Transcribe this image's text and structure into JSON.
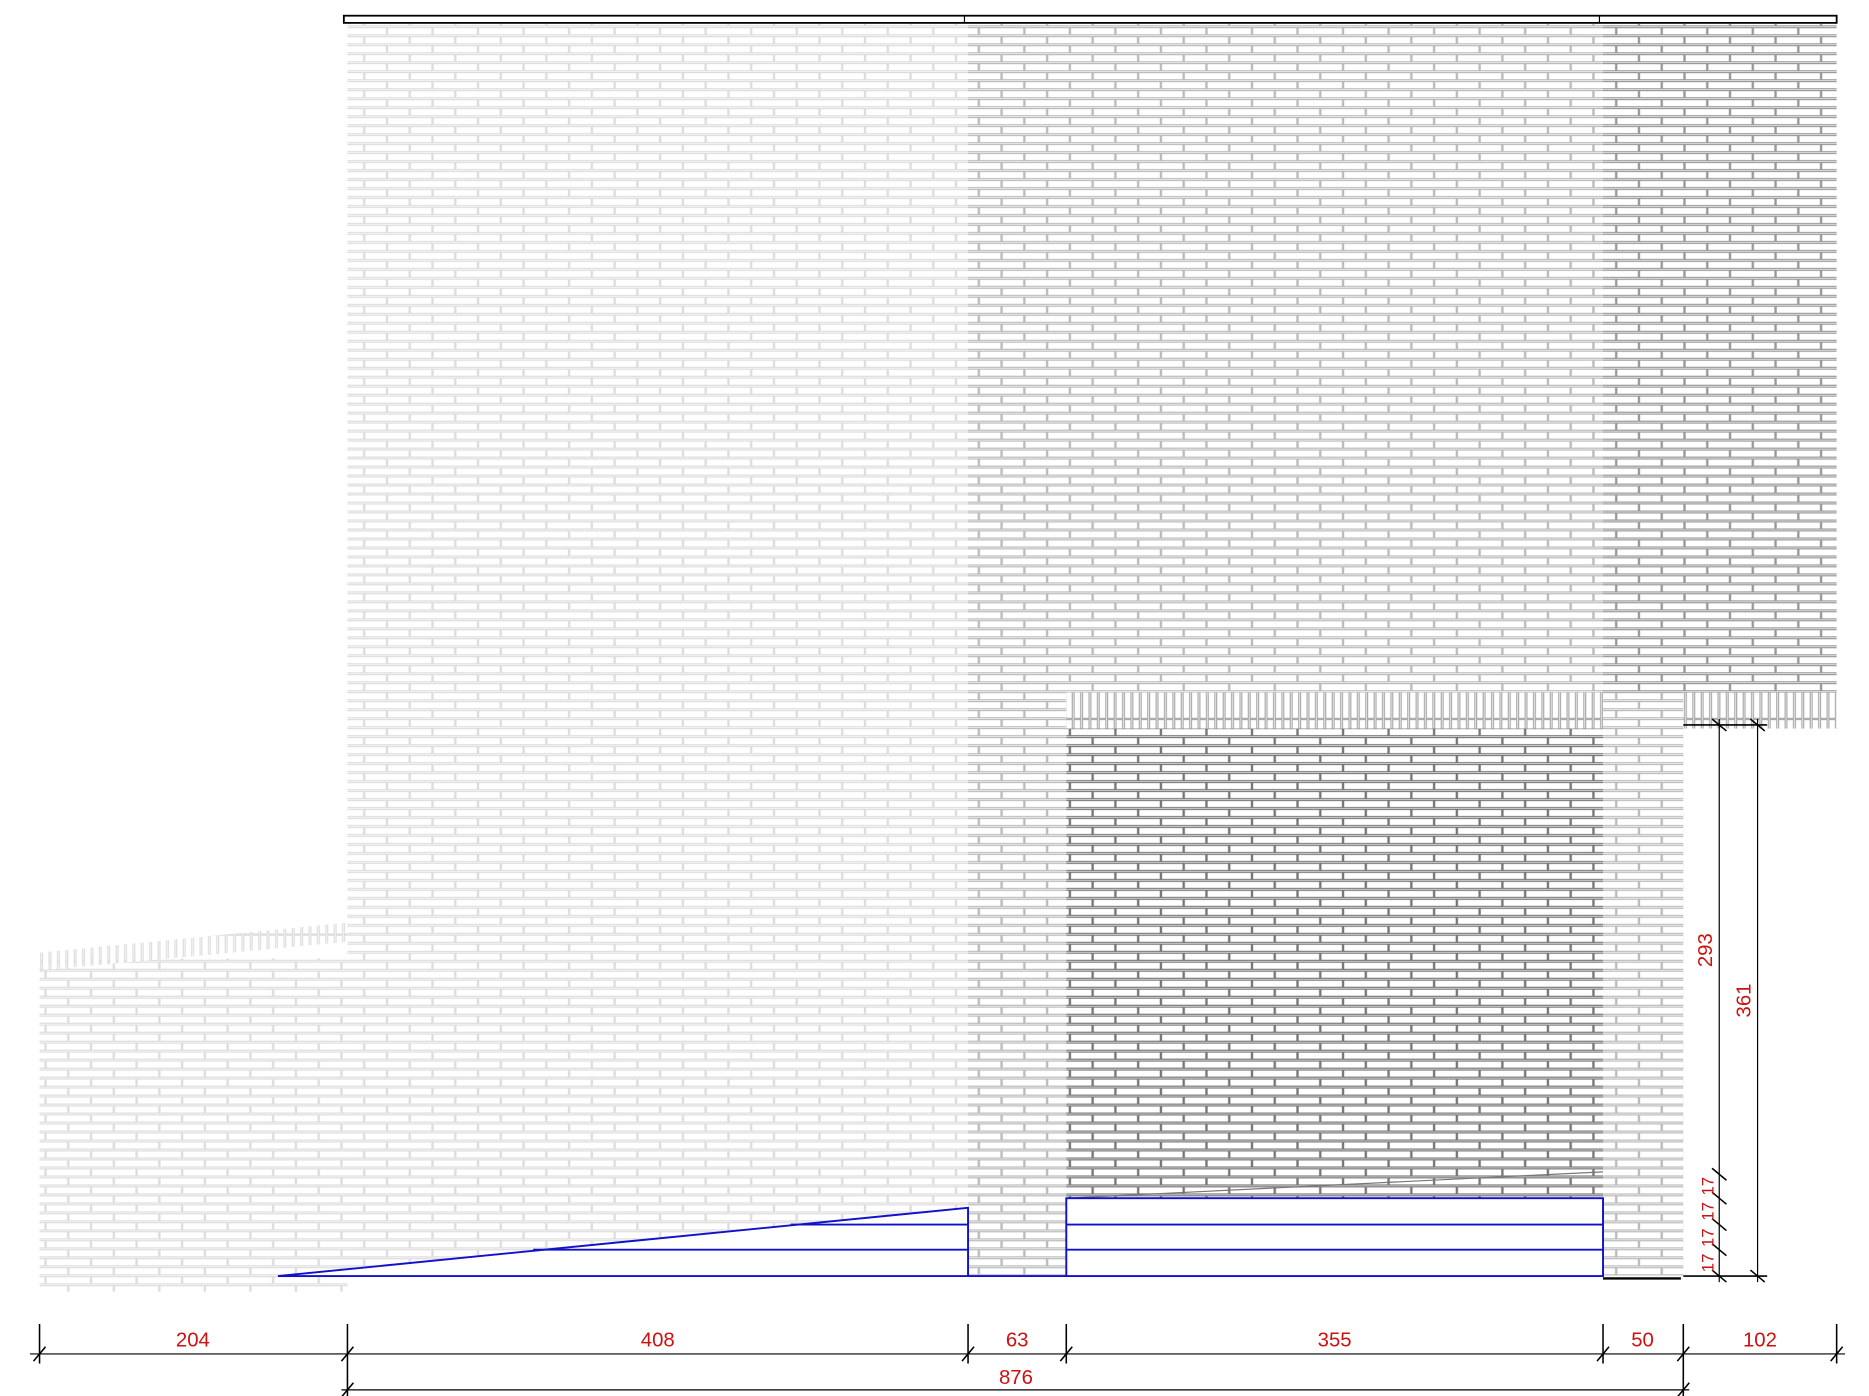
{
  "dimensions": {
    "horizontal": [
      204,
      408,
      63,
      355,
      50,
      102
    ],
    "overall": 876,
    "vertical": {
      "upper": 293,
      "total": 361,
      "steps": [
        17,
        17,
        17,
        17
      ]
    }
  }
}
